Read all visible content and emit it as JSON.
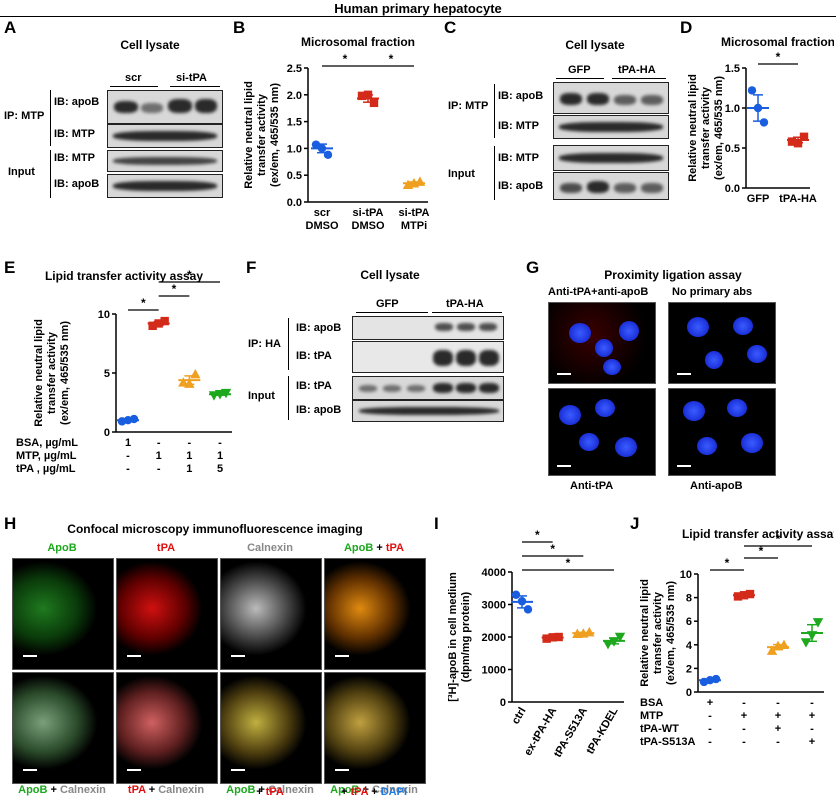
{
  "figure_title": "Human primary hepatocyte",
  "panels": {
    "A": {
      "letter": "A",
      "title": "Cell lysate",
      "group_labels": [
        "scr",
        "si-tPA"
      ],
      "row_labels": [
        "IB: apoB",
        "IB: MTP",
        "IB: MTP",
        "IB: apoB"
      ],
      "side_labels": [
        "IP: MTP",
        "Input"
      ]
    },
    "C": {
      "letter": "C",
      "title": "Cell lysate",
      "group_labels": [
        "GFP",
        "tPA-HA"
      ],
      "row_labels": [
        "IB: apoB",
        "IB: MTP",
        "IB: MTP",
        "IB: apoB"
      ],
      "side_labels": [
        "IP: MTP",
        "Input"
      ]
    },
    "F": {
      "letter": "F",
      "title": "Cell lysate",
      "group_labels": [
        "GFP",
        "tPA-HA"
      ],
      "row_labels": [
        "IB: apoB",
        "IB: tPA",
        "IB: tPA",
        "IB: apoB"
      ],
      "side_labels": [
        "IP: HA",
        "Input"
      ]
    },
    "G": {
      "letter": "G",
      "title": "Proximity ligation assay",
      "top_labels": [
        "Anti-tPA+anti-apoB",
        "No primary abs"
      ],
      "bottom_labels": [
        "Anti-tPA",
        "Anti-apoB"
      ]
    },
    "H": {
      "letter": "H",
      "title": "Confocal microscopy immunofluorescence imaging",
      "top_labels": [
        {
          "parts": [
            {
              "t": "ApoB",
              "c": "green"
            }
          ]
        },
        {
          "parts": [
            {
              "t": "tPA",
              "c": "red"
            }
          ]
        },
        {
          "parts": [
            {
              "t": "Calnexin",
              "c": "gray"
            }
          ]
        },
        {
          "parts": [
            {
              "t": "ApoB",
              "c": "green"
            },
            {
              "t": " + ",
              "c": "black"
            },
            {
              "t": "tPA",
              "c": "red"
            }
          ]
        }
      ],
      "bottom_labels_line1": [
        {
          "parts": [
            {
              "t": "ApoB",
              "c": "green"
            },
            {
              "t": " + ",
              "c": "black"
            },
            {
              "t": "Calnexin",
              "c": "gray"
            }
          ]
        },
        {
          "parts": [
            {
              "t": "tPA",
              "c": "red"
            },
            {
              "t": " + ",
              "c": "black"
            },
            {
              "t": "Calnexin",
              "c": "gray"
            }
          ]
        },
        {
          "parts": [
            {
              "t": "ApoB",
              "c": "green"
            },
            {
              "t": " + ",
              "c": "black"
            },
            {
              "t": "Calnexin",
              "c": "gray"
            }
          ]
        },
        {
          "parts": [
            {
              "t": "ApoB",
              "c": "green"
            },
            {
              "t": " + ",
              "c": "black"
            },
            {
              "t": "Calnexin",
              "c": "gray"
            }
          ]
        }
      ],
      "bottom_labels_line2": [
        {
          "parts": []
        },
        {
          "parts": []
        },
        {
          "parts": [
            {
              "t": "+ ",
              "c": "black"
            },
            {
              "t": "tPA",
              "c": "red"
            }
          ]
        },
        {
          "parts": [
            {
              "t": "+ ",
              "c": "black"
            },
            {
              "t": "tPA",
              "c": "red"
            },
            {
              "t": " + ",
              "c": "black"
            },
            {
              "t": "DAPI",
              "c": "blue"
            }
          ]
        }
      ]
    }
  },
  "chart_data": [
    {
      "panel": "B",
      "type": "scatter",
      "title": "Microsomal fraction",
      "ylabel": [
        "Relative neutral lipid",
        "transfer activity",
        "(ex/em, 465/535 nm)"
      ],
      "ylim": [
        0,
        2.5
      ],
      "yticks": [
        "0.0",
        "0.5",
        "1.0",
        "1.5",
        "2.0",
        "2.5"
      ],
      "ytick_values": [
        0,
        0.5,
        1.0,
        1.5,
        2.0,
        2.5
      ],
      "categories": [
        [
          "scr",
          "DMSO"
        ],
        [
          "si-tPA",
          "DMSO"
        ],
        [
          "si-tPA",
          "MTPi"
        ]
      ],
      "means": [
        1.0,
        1.93,
        0.35
      ],
      "colors": [
        "#1a5ee0",
        "#d42a1a",
        "#f0a020"
      ],
      "markers": [
        "circle",
        "square",
        "triangle"
      ],
      "points": [
        [
          1.07,
          0.88,
          1.0
        ],
        [
          1.98,
          1.85,
          2.0
        ],
        [
          0.32,
          0.38,
          0.35
        ]
      ],
      "significance": [
        {
          "from": 0,
          "to": 1,
          "label": "*"
        },
        {
          "from": 1,
          "to": 2,
          "label": "*"
        }
      ]
    },
    {
      "panel": "D",
      "type": "scatter",
      "title": "Microsomal fraction",
      "ylabel": [
        "Relative neutral lipid",
        "transfer activity",
        "(ex/em, 465/535 nm)"
      ],
      "ylim": [
        0,
        1.5
      ],
      "yticks": [
        "0.0",
        "0.5",
        "1.0",
        "1.5"
      ],
      "ytick_values": [
        0,
        0.5,
        1.0,
        1.5
      ],
      "categories": [
        [
          "GFP"
        ],
        [
          "tPA-HA"
        ]
      ],
      "means": [
        1.0,
        0.6
      ],
      "colors": [
        "#1a5ee0",
        "#d42a1a"
      ],
      "markers": [
        "circle",
        "square"
      ],
      "points": [
        [
          1.22,
          0.82,
          1.0
        ],
        [
          0.58,
          0.64,
          0.56
        ]
      ],
      "significance": [
        {
          "from": 0,
          "to": 1,
          "label": "*"
        }
      ]
    },
    {
      "panel": "E",
      "type": "scatter",
      "title": "Lipid transfer activity assay",
      "ylabel": [
        "Relative neutral lipid",
        "transfer activity",
        "(ex/em, 465/535 nm)"
      ],
      "ylim": [
        0,
        10
      ],
      "yticks": [
        "0",
        "5",
        "10"
      ],
      "ytick_values": [
        0,
        5,
        10
      ],
      "row_labels": [
        "BSA, µg/mL",
        "MTP, µg/mL",
        "tPA , µg/mL"
      ],
      "table": [
        [
          "1",
          "-",
          "-",
          "-"
        ],
        [
          "-",
          "1",
          "1",
          "1"
        ],
        [
          "-",
          "-",
          "1",
          "5"
        ]
      ],
      "means": [
        1.0,
        9.2,
        4.4,
        3.2
      ],
      "colors": [
        "#1a5ee0",
        "#d42a1a",
        "#f0a020",
        "#1ea81e"
      ],
      "markers": [
        "circle",
        "square",
        "triangle",
        "triangle-down"
      ],
      "points": [
        [
          0.9,
          1.1,
          1.0
        ],
        [
          9.0,
          9.4,
          9.2
        ],
        [
          4.2,
          4.9,
          4.1
        ],
        [
          3.1,
          3.3,
          3.2
        ]
      ],
      "significance": [
        {
          "from": 0,
          "to": 1,
          "label": "*"
        },
        {
          "from": 1,
          "to": 2,
          "label": "*"
        },
        {
          "from": 1,
          "to": 3,
          "label": "*"
        }
      ]
    },
    {
      "panel": "I",
      "type": "scatter",
      "title": "",
      "ylabel": [
        "[³H]-apoB in cell medium",
        "(dpm/mg protein)"
      ],
      "ylim": [
        0,
        4000
      ],
      "yticks": [
        "0",
        "1000",
        "2000",
        "3000",
        "4000"
      ],
      "ytick_values": [
        0,
        1000,
        2000,
        3000,
        4000
      ],
      "categories": [
        [
          "ctrl"
        ],
        [
          "ex-tPA-HA"
        ],
        [
          "tPA-S513A"
        ],
        [
          "tPA-KDEL"
        ]
      ],
      "means": [
        3080,
        1980,
        2120,
        1880
      ],
      "colors": [
        "#1a5ee0",
        "#d42a1a",
        "#f0a020",
        "#1ea81e"
      ],
      "markers": [
        "circle",
        "square",
        "triangle",
        "triangle-down"
      ],
      "points": [
        [
          3300,
          2850,
          3100
        ],
        [
          1950,
          2000,
          1990
        ],
        [
          2100,
          2150,
          2110
        ],
        [
          1780,
          2000,
          1860
        ]
      ],
      "significance": [
        {
          "from": 0,
          "to": 1,
          "label": "*"
        },
        {
          "from": 0,
          "to": 2,
          "label": "*"
        },
        {
          "from": 0,
          "to": 3,
          "label": "*"
        }
      ]
    },
    {
      "panel": "J",
      "type": "scatter",
      "title": "Lipid transfer activity assay",
      "ylabel": [
        "Relative neutral lipid",
        "transfer activity",
        "(ex/em, 465/535 nm)"
      ],
      "ylim": [
        0,
        10
      ],
      "yticks": [
        "0",
        "2",
        "4",
        "6",
        "8",
        "10"
      ],
      "ytick_values": [
        0,
        2,
        4,
        6,
        8,
        10
      ],
      "row_labels": [
        "BSA",
        "MTP",
        "tPA-WT",
        "tPA-S513A"
      ],
      "table": [
        [
          "+",
          "-",
          "-",
          "-"
        ],
        [
          "-",
          "+",
          "+",
          "+"
        ],
        [
          "-",
          "-",
          "+",
          "-"
        ],
        [
          "-",
          "-",
          "-",
          "+"
        ]
      ],
      "means": [
        1.0,
        8.2,
        3.8,
        5.0
      ],
      "colors": [
        "#1a5ee0",
        "#d42a1a",
        "#f0a020",
        "#1ea81e"
      ],
      "markers": [
        "circle",
        "square",
        "triangle",
        "triangle-down"
      ],
      "points": [
        [
          0.85,
          1.1,
          1.0
        ],
        [
          8.1,
          8.3,
          8.2
        ],
        [
          3.5,
          4.0,
          3.9
        ],
        [
          4.2,
          5.9,
          4.8
        ]
      ],
      "significance": [
        {
          "from": 0,
          "to": 1,
          "label": "*"
        },
        {
          "from": 1,
          "to": 2,
          "label": "*"
        },
        {
          "from": 1,
          "to": 3,
          "label": "*"
        }
      ]
    }
  ]
}
